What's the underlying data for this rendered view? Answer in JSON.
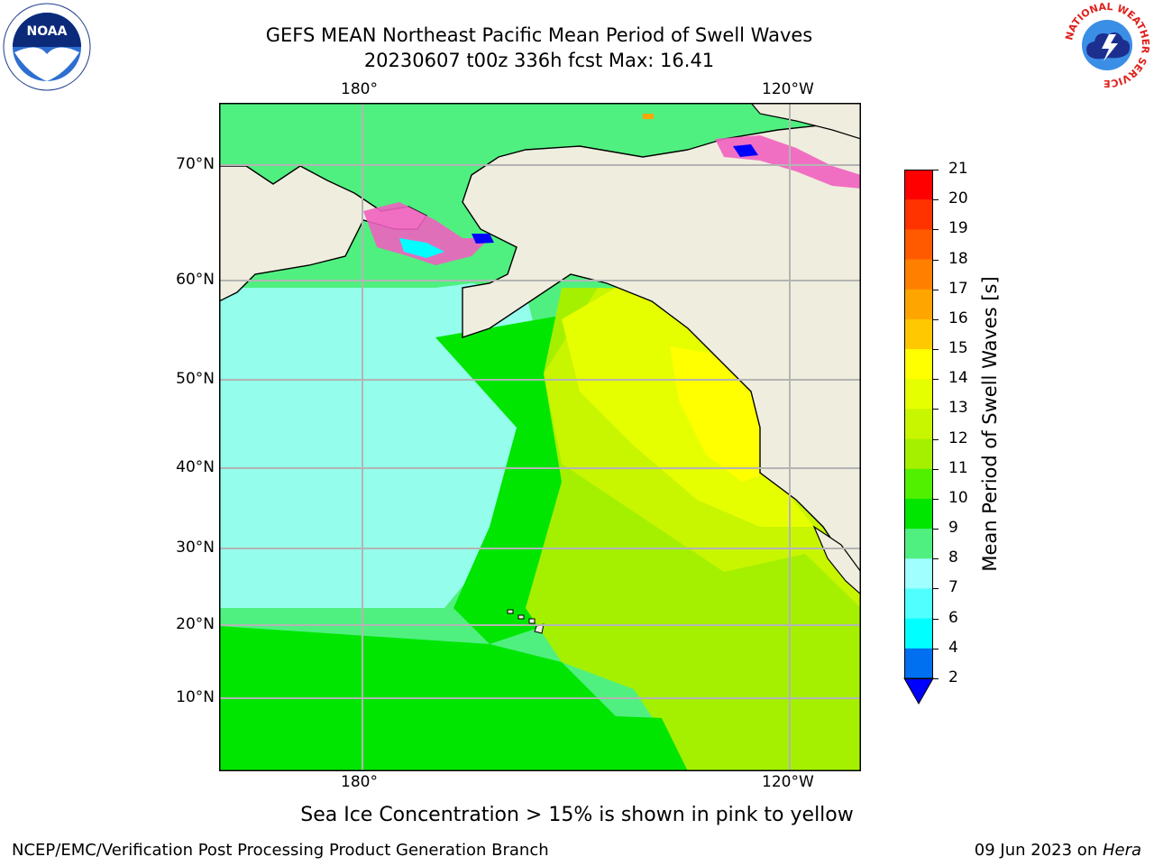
{
  "title": {
    "line1": "GEFS MEAN Northeast Pacific Mean Period of Swell Waves",
    "line2": "20230607 t00z 336h fcst   Max: 16.41"
  },
  "map": {
    "top_lon_labels": [
      "180°",
      "120°W"
    ],
    "bottom_lon_labels": [
      "180°",
      "120°W"
    ],
    "lat_labels": [
      "70°N",
      "60°N",
      "50°N",
      "40°N",
      "30°N",
      "20°N",
      "10°N"
    ],
    "land_color": "#efedde",
    "grid_color": "#b4b4b4"
  },
  "colorbar": {
    "title": "Mean Period of Swell Waves [s]",
    "ticks": [
      "21",
      "20",
      "19",
      "18",
      "17",
      "16",
      "15",
      "14",
      "13",
      "12",
      "11",
      "10",
      "9",
      "8",
      "7",
      "6",
      "4",
      "2"
    ],
    "colors": [
      "#ff0000",
      "#ff3300",
      "#ff5a00",
      "#ff7f00",
      "#ffa500",
      "#ffc800",
      "#ffff00",
      "#e6ff00",
      "#c8f500",
      "#a5f000",
      "#50f000",
      "#00e600",
      "#50f080",
      "#a0ffff",
      "#50ffff",
      "#00ffff",
      "#00c0ff",
      "#0070f0"
    ],
    "under_color": "#0000ff"
  },
  "note": "Sea Ice Concentration > 15% is shown in pink to yellow",
  "footer": {
    "left": "NCEP/EMC/Verification Post Processing Product Generation Branch",
    "date": "09 Jun 2023 on ",
    "host": "Hera"
  },
  "logos": {
    "noaa_text": "NOAA",
    "nws_ring_text": "NATIONAL WEATHER SERVICE"
  }
}
